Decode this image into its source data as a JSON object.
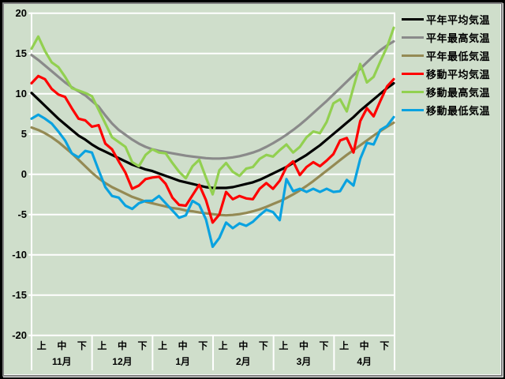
{
  "window": {
    "background": "#cfdecb",
    "gridline_color": "#ffffff"
  },
  "legend": {
    "position": "right",
    "items": [
      {
        "id": "normal-avg",
        "label": "平年平均気温",
        "color": "#000000"
      },
      {
        "id": "normal-max",
        "label": "平年最高気温",
        "color": "#8a8a8a"
      },
      {
        "id": "normal-min",
        "label": "平年最低気温",
        "color": "#948a54"
      },
      {
        "id": "moving-avg",
        "label": "移動平均気温",
        "color": "#ff0000"
      },
      {
        "id": "moving-max",
        "label": "移動最高気温",
        "color": "#92d050"
      },
      {
        "id": "moving-min",
        "label": "移動最低気温",
        "color": "#0aa2e0"
      }
    ]
  },
  "axis": {
    "y": {
      "tick_labels": [
        "20",
        "15",
        "10",
        "5",
        "0",
        "-5",
        "-10",
        "-15",
        "-20"
      ],
      "min": -20,
      "max": 20,
      "step": 5
    },
    "x": {
      "period_labels": [
        "上",
        "中",
        "下"
      ],
      "months": [
        "11月",
        "12月",
        "1月",
        "2月",
        "3月",
        "4月"
      ]
    }
  },
  "chart_data": {
    "type": "line",
    "title": "",
    "xlabel": "",
    "ylabel": "",
    "ylim": [
      -20,
      20
    ],
    "grid": true,
    "legend_position": "right",
    "x_categories_months": [
      "11月",
      "12月",
      "1月",
      "2月",
      "3月",
      "4月"
    ],
    "x_subcategories_per_month": [
      "上",
      "中",
      "下"
    ],
    "note": "values sampled at 55 evenly spaced points from Nov 1 to Apr 30 (temperature, degC)",
    "series": [
      {
        "id": "normal-avg",
        "name": "平年平均気温",
        "color": "#000000",
        "smooth": true,
        "values": [
          10.1,
          9.3,
          8.5,
          7.7,
          6.9,
          6.2,
          5.5,
          4.8,
          4.3,
          3.7,
          3.2,
          2.8,
          2.4,
          2.0,
          1.6,
          1.2,
          0.9,
          0.6,
          0.4,
          0.1,
          -0.2,
          -0.5,
          -0.8,
          -1.0,
          -1.2,
          -1.4,
          -1.6,
          -1.7,
          -1.7,
          -1.7,
          -1.6,
          -1.4,
          -1.2,
          -1.0,
          -0.7,
          -0.3,
          0.1,
          0.5,
          0.9,
          1.4,
          1.9,
          2.4,
          3.0,
          3.6,
          4.3,
          5.0,
          5.7,
          6.4,
          7.1,
          7.9,
          8.6,
          9.3,
          10.0,
          10.7,
          11.3
        ]
      },
      {
        "id": "normal-max",
        "name": "平年最高気温",
        "color": "#8a8a8a",
        "smooth": true,
        "values": [
          14.8,
          14.2,
          13.5,
          12.8,
          12.1,
          11.4,
          10.8,
          10.3,
          9.8,
          9.1,
          8.4,
          7.3,
          6.3,
          5.5,
          4.9,
          4.3,
          3.8,
          3.4,
          3.1,
          2.9,
          2.75,
          2.6,
          2.45,
          2.3,
          2.2,
          2.1,
          2.0,
          1.95,
          1.95,
          2.0,
          2.1,
          2.25,
          2.45,
          2.7,
          3.0,
          3.4,
          3.85,
          4.35,
          4.9,
          5.5,
          6.15,
          6.85,
          7.6,
          8.35,
          9.1,
          9.9,
          10.7,
          11.5,
          12.3,
          13.1,
          13.9,
          14.7,
          15.4,
          16.0,
          16.5
        ]
      },
      {
        "id": "normal-min",
        "name": "平年最低気温",
        "color": "#948a54",
        "smooth": true,
        "values": [
          5.8,
          5.5,
          5.1,
          4.6,
          4.0,
          3.3,
          2.6,
          1.8,
          1.0,
          0.2,
          -0.5,
          -1.1,
          -1.6,
          -2.0,
          -2.4,
          -2.8,
          -3.1,
          -3.4,
          -3.6,
          -3.8,
          -4.0,
          -4.2,
          -4.3,
          -4.5,
          -4.6,
          -4.75,
          -4.85,
          -4.95,
          -5.05,
          -5.1,
          -5.05,
          -4.95,
          -4.8,
          -4.6,
          -4.35,
          -4.05,
          -3.7,
          -3.35,
          -2.95,
          -2.5,
          -2.0,
          -1.45,
          -0.85,
          -0.2,
          0.45,
          1.1,
          1.75,
          2.4,
          3.0,
          3.6,
          4.2,
          4.8,
          5.35,
          5.9,
          6.4
        ]
      },
      {
        "id": "moving-avg",
        "name": "移動平均気温",
        "color": "#ff0000",
        "smooth": false,
        "values": [
          11.3,
          12.2,
          11.8,
          10.6,
          9.9,
          9.6,
          8.2,
          6.9,
          6.7,
          5.9,
          6.1,
          3.8,
          3.1,
          1.6,
          0.2,
          -1.8,
          -1.4,
          -0.6,
          -0.4,
          -0.3,
          -1.2,
          -2.9,
          -3.8,
          -3.9,
          -2.6,
          -1.3,
          -3.2,
          -6.0,
          -5.0,
          -2.2,
          -3.1,
          -2.7,
          -3.0,
          -3.1,
          -1.8,
          -1.1,
          -1.8,
          -0.8,
          0.9,
          1.6,
          -0.1,
          0.9,
          1.5,
          1.0,
          1.7,
          2.5,
          4.2,
          4.5,
          2.7,
          6.6,
          8.2,
          7.2,
          9.1,
          10.9,
          11.8
        ]
      },
      {
        "id": "moving-max",
        "name": "移動最高気温",
        "color": "#92d050",
        "smooth": false,
        "values": [
          15.6,
          17.1,
          15.3,
          13.9,
          13.3,
          12.1,
          10.7,
          10.4,
          10.1,
          9.7,
          8.0,
          6.3,
          4.6,
          4.0,
          3.4,
          1.5,
          1.0,
          2.4,
          3.1,
          2.7,
          2.6,
          1.4,
          0.3,
          -0.5,
          1.0,
          1.8,
          -0.4,
          -2.5,
          0.5,
          1.4,
          0.3,
          -0.2,
          0.7,
          0.9,
          1.9,
          2.4,
          2.2,
          3.0,
          3.7,
          2.7,
          3.4,
          4.6,
          5.3,
          5.1,
          6.5,
          8.8,
          9.3,
          7.8,
          10.8,
          13.7,
          11.4,
          12.1,
          14.0,
          15.8,
          18.2
        ]
      },
      {
        "id": "moving-min",
        "name": "移動最低気温",
        "color": "#0aa2e0",
        "smooth": false,
        "values": [
          6.9,
          7.4,
          6.9,
          6.3,
          5.3,
          4.2,
          2.6,
          2.1,
          2.9,
          2.7,
          0.5,
          -1.6,
          -2.7,
          -2.9,
          -3.9,
          -4.3,
          -3.6,
          -3.3,
          -3.3,
          -2.7,
          -3.6,
          -4.5,
          -5.4,
          -5.1,
          -3.3,
          -3.8,
          -5.6,
          -9.0,
          -7.9,
          -6.0,
          -6.7,
          -6.1,
          -6.4,
          -5.9,
          -5.1,
          -4.4,
          -4.7,
          -5.7,
          -0.6,
          -2.1,
          -1.8,
          -2.2,
          -1.8,
          -2.2,
          -1.8,
          -2.2,
          -2.1,
          -0.7,
          -1.4,
          1.9,
          3.9,
          3.7,
          5.5,
          6.0,
          7.1
        ]
      }
    ]
  }
}
